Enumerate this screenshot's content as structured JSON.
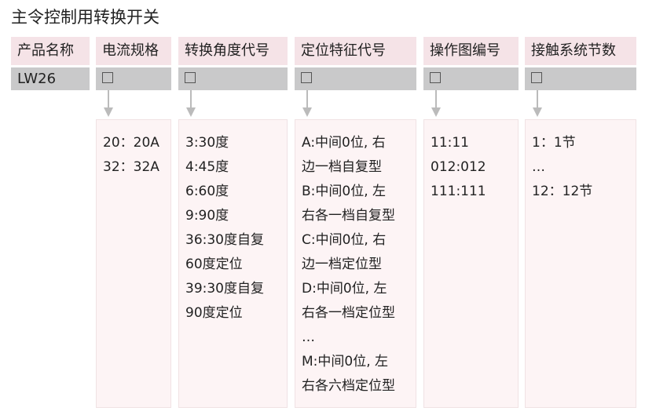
{
  "title": "主令控制用转换开关",
  "columns": [
    {
      "header": "产品名称",
      "code": "LW26",
      "items": []
    },
    {
      "header": "电流规格",
      "code": "□",
      "items": [
        "20：20A",
        "32：32A"
      ]
    },
    {
      "header": "转换角度代号",
      "code": "□",
      "items": [
        "3:30度",
        "4:45度",
        "6:60度",
        "9:90度",
        "36:30度自复",
        "60度定位",
        "39:30度自复",
        "90度定位"
      ]
    },
    {
      "header": "定位特征代号",
      "code": "□",
      "items": [
        "A:中间0位, 右",
        "边一档自复型",
        "B:中间0位, 左",
        "右各一档自复型",
        "C:中间0位, 右",
        "边一档定位型",
        "D:中间0位, 左",
        "右各一档定位型",
        "…",
        "M:中间0位, 左",
        "右各六档定位型"
      ]
    },
    {
      "header": "操作图编号",
      "code": "□",
      "items": [
        "11:11",
        "012:012",
        "111:111"
      ]
    },
    {
      "header": "接触系统节数",
      "code": "□",
      "items": [
        "1：1节",
        "…",
        "12：12节"
      ]
    }
  ]
}
